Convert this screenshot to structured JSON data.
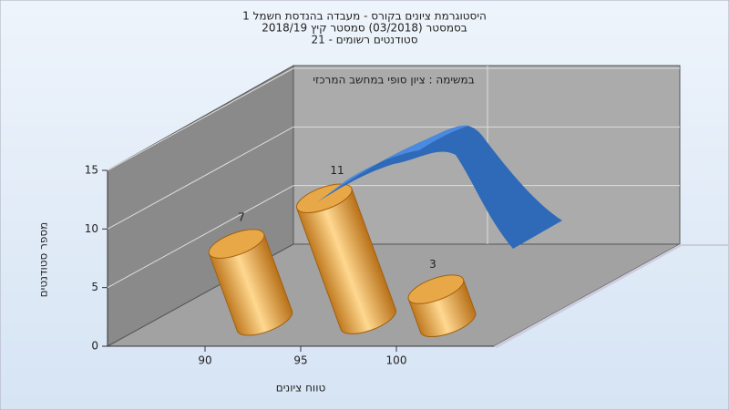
{
  "chart_data": {
    "type": "bar",
    "title": [
      "היסטוגרמת ציונים בקורס - מעבדה בהנדסת חשמל 1",
      "בסמסטר  (03/2018)  סמסטר קיץ 2018/19",
      "סטודנטים רשומים - 21"
    ],
    "subtitle": "במשימה : ציון סופי במחשב המרכזי",
    "y_label": "מספר סטודנטים",
    "x_label": "טווח ציונים",
    "categories": [
      90,
      95,
      100
    ],
    "values": [
      7,
      11,
      3
    ],
    "color": "#e0a040",
    "ylim": [
      0,
      15
    ],
    "yticks": [
      0,
      5,
      10,
      15
    ],
    "grid": true
  }
}
